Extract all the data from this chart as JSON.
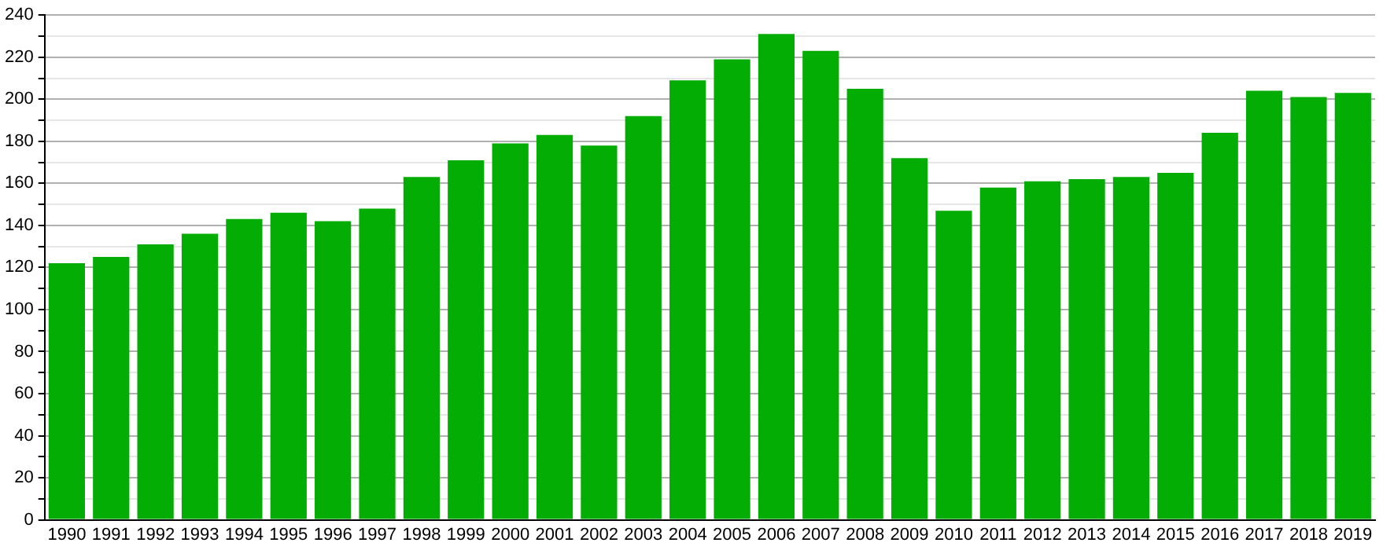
{
  "chart_data": {
    "type": "bar",
    "categories": [
      "1990",
      "1991",
      "1992",
      "1993",
      "1994",
      "1995",
      "1996",
      "1997",
      "1998",
      "1999",
      "2000",
      "2001",
      "2002",
      "2003",
      "2004",
      "2005",
      "2006",
      "2007",
      "2008",
      "2009",
      "2010",
      "2011",
      "2012",
      "2013",
      "2014",
      "2015",
      "2016",
      "2017",
      "2018",
      "2019"
    ],
    "values": [
      122,
      125,
      131,
      136,
      143,
      146,
      142,
      148,
      163,
      171,
      179,
      183,
      178,
      192,
      209,
      219,
      231,
      223,
      205,
      172,
      147,
      158,
      161,
      162,
      163,
      165,
      184,
      204,
      201,
      203
    ],
    "color": "#03ad03",
    "ylim": [
      0,
      240
    ],
    "yticks": [
      0,
      {
        "value": 10,
        "label": null
      },
      20,
      {
        "value": 30,
        "label": null
      },
      40,
      {
        "value": 50,
        "label": null
      },
      60,
      {
        "value": 70,
        "label": null
      },
      80,
      {
        "value": 90,
        "label": null
      },
      100,
      {
        "value": 110,
        "label": null
      },
      120,
      {
        "value": 130,
        "label": null
      },
      140,
      {
        "value": 150,
        "label": null
      },
      160,
      {
        "value": 170,
        "label": null
      },
      180,
      {
        "value": 190,
        "label": null
      },
      200,
      {
        "value": 210,
        "label": null
      },
      220,
      {
        "value": 230,
        "label": null
      },
      240
    ],
    "grid": "y"
  }
}
